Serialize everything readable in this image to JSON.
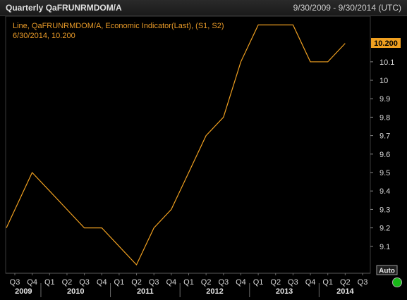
{
  "header": {
    "title": "Quarterly QaFRUNRMDOM/A",
    "date_range": "9/30/2009 - 9/30/2014 (UTC)"
  },
  "legend": {
    "line1": "Line, QaFRUNRMDOM/A, Economic Indicator(Last), (S1, S2)",
    "line2": "6/30/2014, 10.200"
  },
  "last_value_tag": "10.200",
  "auto_button": "Auto",
  "colors": {
    "background": "#000000",
    "line": "#f0a020",
    "legend_text": "#e89a28",
    "grid": "#2e2e2e",
    "axis_text": "#d8d8d8",
    "status_indicator": "#18b818"
  },
  "chart_data": {
    "type": "line",
    "title": "Quarterly QaFRUNRMDOM/A",
    "series": [
      {
        "name": "QaFRUNRMDOM/A",
        "x": [
          "2009 Q3",
          "2009 Q4",
          "2010 Q1",
          "2010 Q2",
          "2010 Q3",
          "2010 Q4",
          "2011 Q1",
          "2011 Q2",
          "2011 Q3",
          "2011 Q4",
          "2012 Q1",
          "2012 Q2",
          "2012 Q3",
          "2012 Q4",
          "2013 Q1",
          "2013 Q2",
          "2013 Q3",
          "2013 Q4",
          "2014 Q1",
          "2014 Q2"
        ],
        "values": [
          9.2,
          9.5,
          9.4,
          9.3,
          9.2,
          9.2,
          9.1,
          9.0,
          9.2,
          9.3,
          9.5,
          9.7,
          9.8,
          10.1,
          10.3,
          10.3,
          10.3,
          10.1,
          10.1,
          10.2
        ]
      }
    ],
    "y_ticks": [
      "9.1",
      "9.2",
      "9.3",
      "9.4",
      "9.5",
      "9.6",
      "9.7",
      "9.8",
      "9.9",
      "10",
      "10.1"
    ],
    "ylim": [
      8.95,
      10.35
    ],
    "x_tick_labels": [
      "Q3",
      "Q4",
      "Q1",
      "Q2",
      "Q3",
      "Q4",
      "Q1",
      "Q2",
      "Q3",
      "Q4",
      "Q1",
      "Q2",
      "Q3",
      "Q4",
      "Q1",
      "Q2",
      "Q3",
      "Q4",
      "Q1",
      "Q2",
      "Q3"
    ],
    "year_labels": [
      "2009",
      "2010",
      "2011",
      "2012",
      "2013",
      "2014"
    ],
    "grid": false,
    "legend_position": "top-left"
  }
}
